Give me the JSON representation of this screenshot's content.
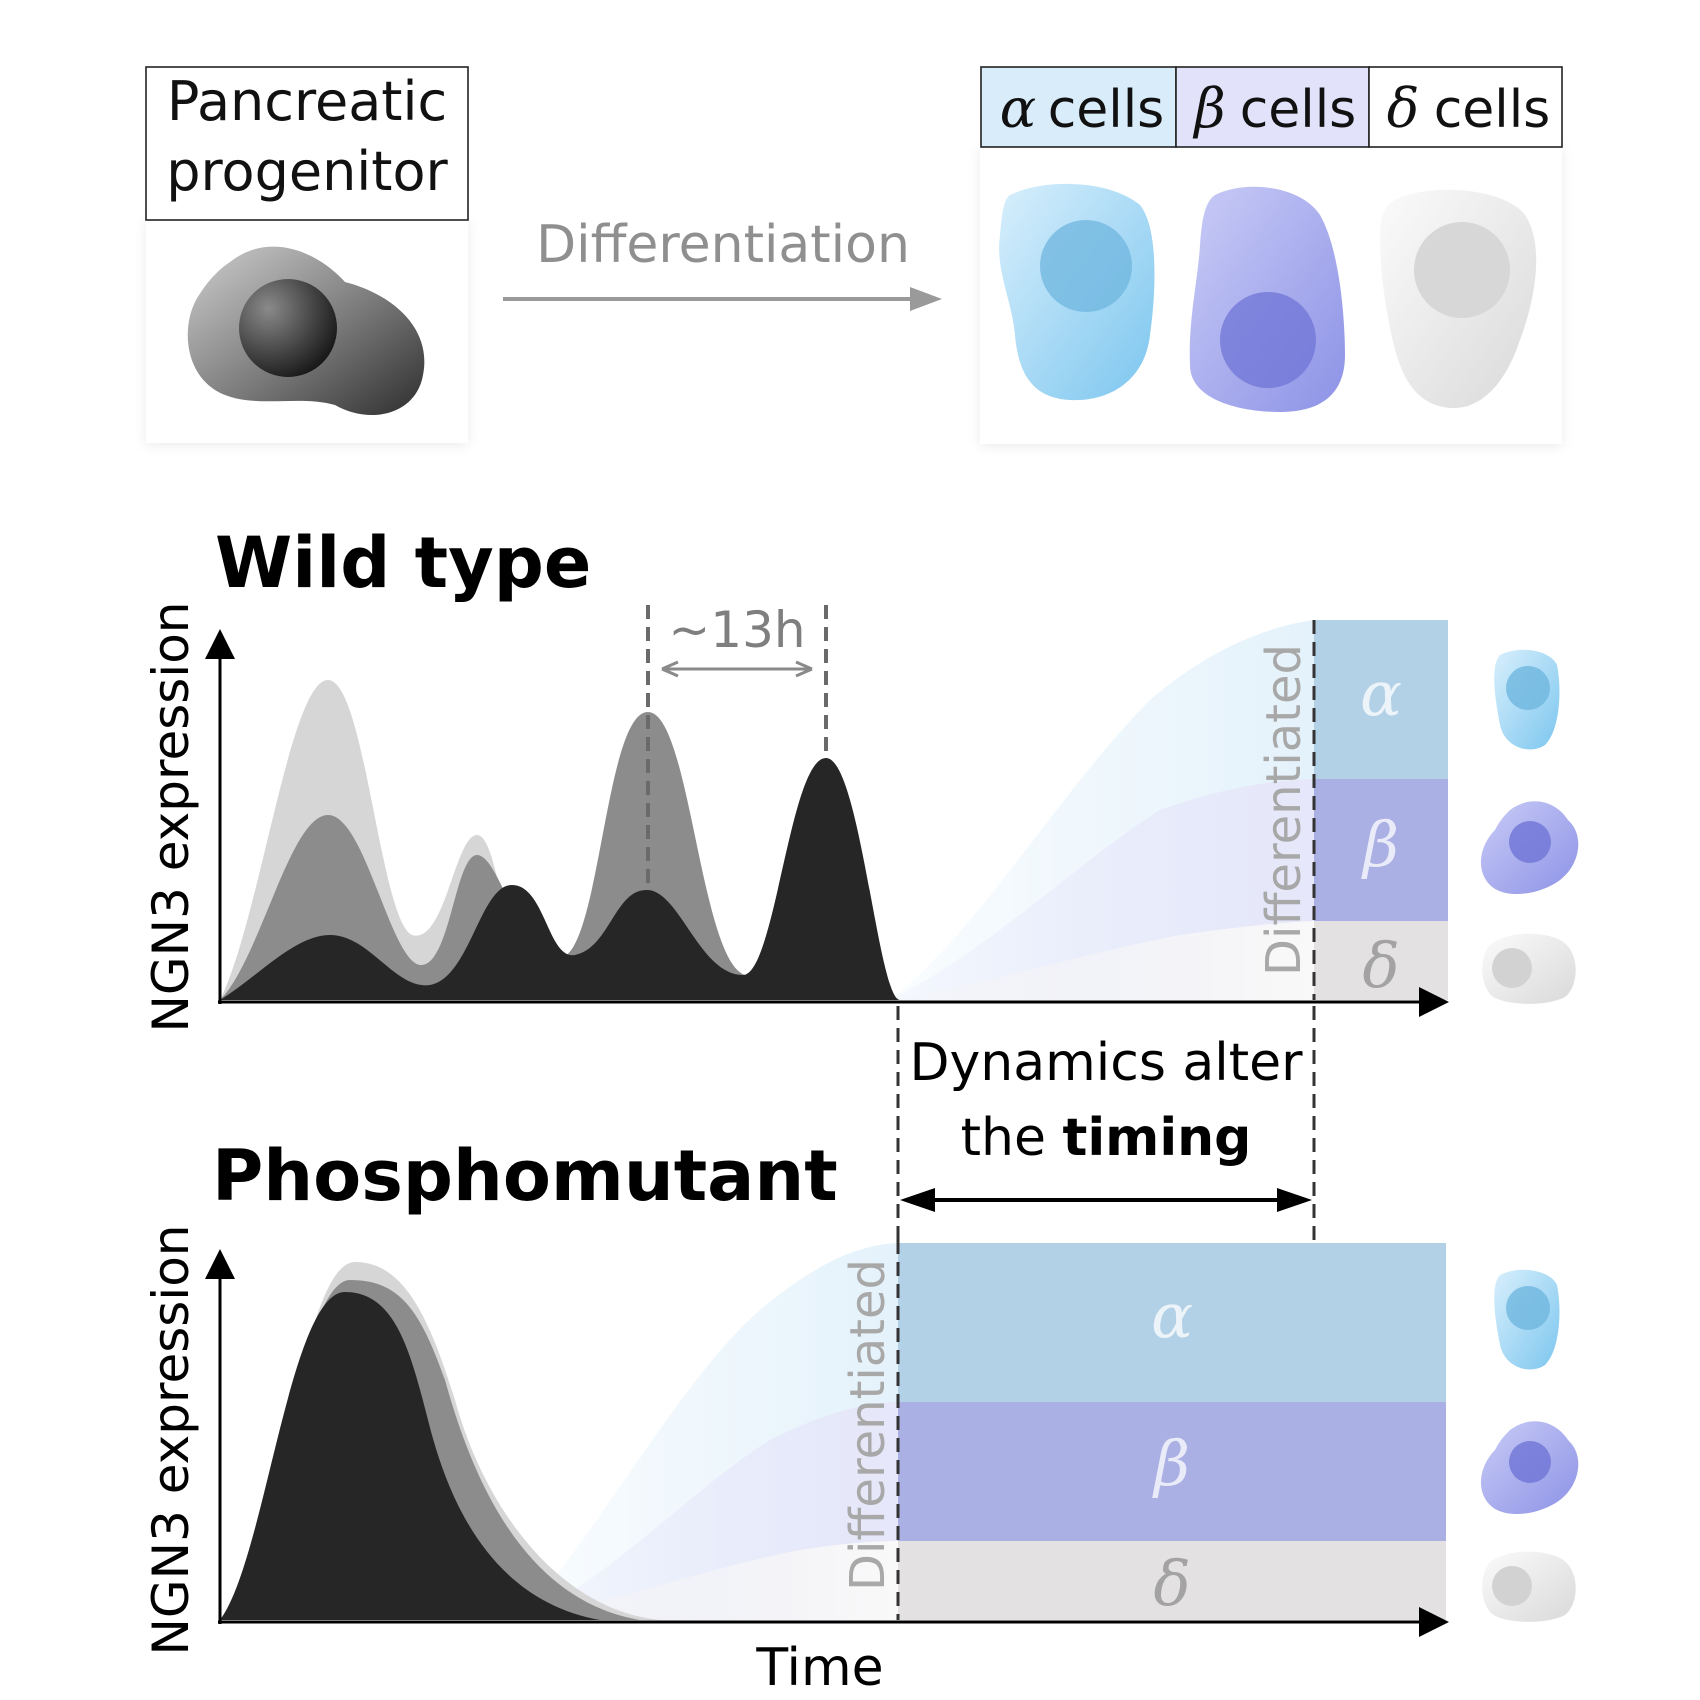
{
  "top": {
    "progenitor_label_line1": "Pancreatic",
    "progenitor_label_line2": "progenitor",
    "differentiation_label": "Differentiation",
    "cell_types": [
      {
        "symbol": "α",
        "label": "cells",
        "color": "#cfe6f7"
      },
      {
        "symbol": "β",
        "label": "cells",
        "color": "#dcdcf6"
      },
      {
        "symbol": "δ",
        "label": "cells",
        "color": "#ffffff"
      }
    ]
  },
  "wild_type": {
    "title": "Wild type",
    "ylabel": "NGN3 expression",
    "period_label": "~13h",
    "differentiated_label": "Differentiated",
    "bands": [
      "α",
      "β",
      "δ"
    ]
  },
  "timing": {
    "line1": "Dynamics alter",
    "line2_prefix": "the ",
    "line2_bold": "timing"
  },
  "phosphomutant": {
    "title": "Phosphomutant",
    "ylabel": "NGN3 expression",
    "differentiated_label": "Differentiated",
    "bands": [
      "α",
      "β",
      "δ"
    ]
  },
  "xlabel": "Time",
  "colors": {
    "alpha": "#b3d1e6",
    "beta": "#aab0e3",
    "delta": "#e3e1e1",
    "alpha_cell": "#8fcff2",
    "beta_cell": "#9ea2ec",
    "delta_cell": "#e8e8e8",
    "dark_trace": "#262626",
    "mid_trace": "#8c8c8c",
    "light_trace": "#d6d6d6"
  }
}
